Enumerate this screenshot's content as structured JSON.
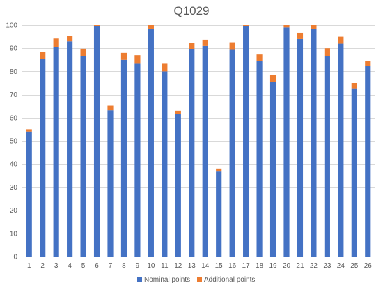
{
  "chart_data": {
    "type": "bar",
    "stacked": true,
    "title": "Q1029",
    "xlabel": "",
    "ylabel": "",
    "ylim": [
      0,
      100
    ],
    "yticks": [
      0,
      10,
      20,
      30,
      40,
      50,
      60,
      70,
      80,
      90,
      100
    ],
    "grid": true,
    "legend_position": "bottom",
    "categories": [
      "1",
      "2",
      "3",
      "4",
      "5",
      "6",
      "7",
      "8",
      "9",
      "10",
      "11",
      "12",
      "13",
      "14",
      "15",
      "16",
      "17",
      "18",
      "19",
      "20",
      "21",
      "22",
      "23",
      "24",
      "25",
      "26"
    ],
    "series": [
      {
        "name": "Nominal points",
        "color": "#4472c4",
        "values": [
          54,
          85.5,
          90.5,
          93,
          86.5,
          99.5,
          63.2,
          85,
          83.3,
          98.5,
          80,
          61.7,
          89.5,
          91,
          36.7,
          89.3,
          99.5,
          84.5,
          75.3,
          99,
          94,
          98.5,
          86.7,
          92,
          72.7,
          82.3
        ]
      },
      {
        "name": "Additional points",
        "color": "#ed7d31",
        "values": [
          1,
          3,
          3.7,
          2.3,
          3.3,
          0.5,
          2,
          3,
          3.7,
          1.5,
          3.3,
          1.3,
          2.8,
          2.7,
          1.3,
          3.3,
          0.5,
          2.8,
          3.3,
          1,
          2.7,
          1.5,
          3.3,
          3,
          2.3,
          2.3
        ]
      }
    ]
  }
}
